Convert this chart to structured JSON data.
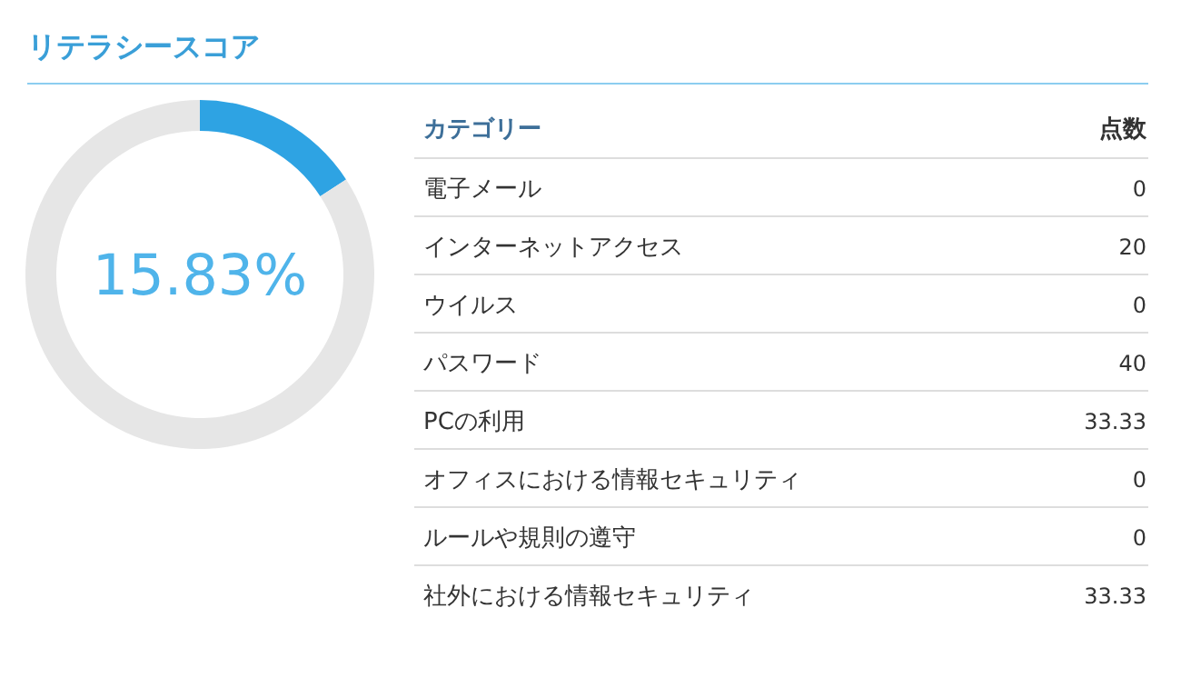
{
  "chart_data": [
    {
      "type": "donut",
      "title": "リテラシースコア",
      "categories": [
        null,
        null
      ],
      "values": [
        15.83,
        84.17
      ],
      "colors": [
        "#2ea3e3",
        "#e6e6e6"
      ],
      "annotations": [
        "15.83%"
      ]
    },
    {
      "type": "other",
      "xlabel": "カテゴリー",
      "ylabel": "点数",
      "categories": [
        "電子メール",
        "インターネットアクセス",
        "ウイルス",
        "パスワード",
        "PCの利用",
        "オフィスにおける情報セキュリティ",
        "ルールや規則の遵守",
        "社外における情報セキュリティ"
      ],
      "values": [
        0,
        20,
        0,
        40,
        33.33,
        0,
        0,
        33.33
      ],
      "data_labels": true
    }
  ]
}
